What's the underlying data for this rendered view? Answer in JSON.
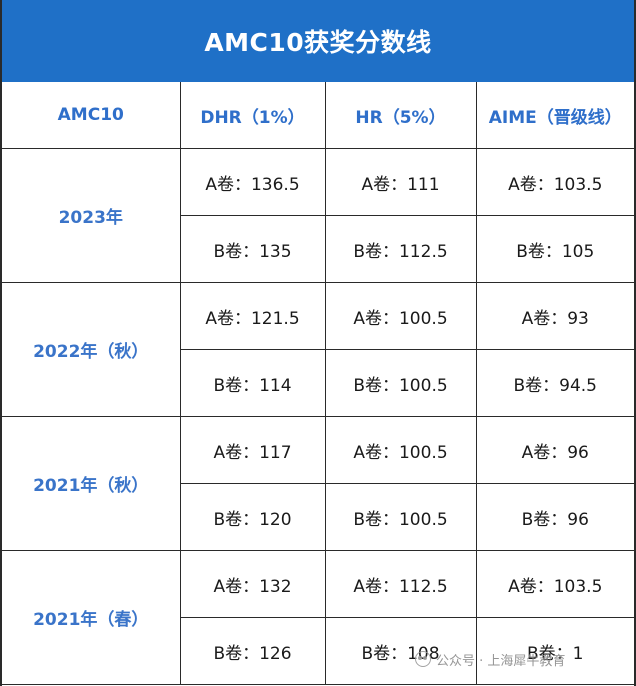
{
  "title": "AMC10获奖分数线",
  "headers": {
    "col0": "AMC10",
    "col1": "DHR（1%）",
    "col2": "HR（5%）",
    "col3": "AIME（晋级线）"
  },
  "groups": [
    {
      "year": "2023年",
      "rows": [
        {
          "dhr": "A卷：136.5",
          "hr": "A卷：111",
          "aime": "A卷：103.5"
        },
        {
          "dhr": "B卷：135",
          "hr": "B卷：112.5",
          "aime": "B卷：105"
        }
      ]
    },
    {
      "year": "2022年（秋）",
      "rows": [
        {
          "dhr": "A卷：121.5",
          "hr": "A卷：100.5",
          "aime": "A卷：93"
        },
        {
          "dhr": "B卷：114",
          "hr": "B卷：100.5",
          "aime": "B卷：94.5"
        }
      ]
    },
    {
      "year": "2021年（秋）",
      "rows": [
        {
          "dhr": "A卷：117",
          "hr": "A卷：100.5",
          "aime": "A卷：96"
        },
        {
          "dhr": "B卷：120",
          "hr": "B卷：100.5",
          "aime": "B卷：96"
        }
      ]
    },
    {
      "year": "2021年（春）",
      "rows": [
        {
          "dhr": "A卷：132",
          "hr": "A卷：112.5",
          "aime": "A卷：103.5"
        },
        {
          "dhr": "B卷：126",
          "hr": "B卷：108",
          "aime": "B卷：1"
        }
      ]
    }
  ],
  "watermark": {
    "icon": "wechat-icon",
    "text": "公众号 · 上海犀牛教育"
  }
}
